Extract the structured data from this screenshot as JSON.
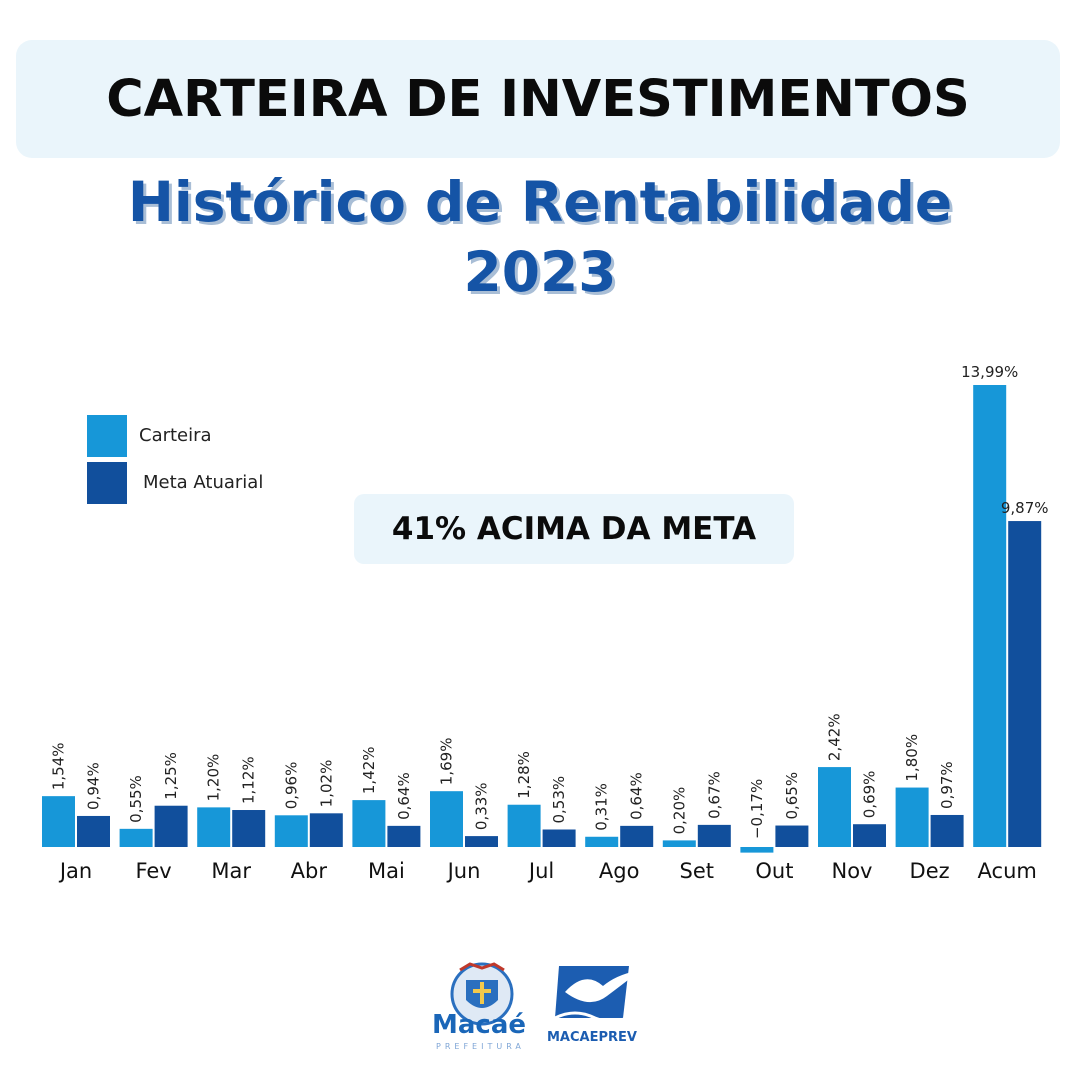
{
  "banner": {
    "title": "CARTEIRA DE INVESTIMENTOS"
  },
  "subtitle": {
    "line1": "Histórico de Rentabilidade",
    "line2": "2023"
  },
  "callout": {
    "text": "41% ACIMA DA META"
  },
  "colors": {
    "carteira": "#1797d8",
    "meta": "#114f9c",
    "accent_bg": "#eaf5fb",
    "title_blue": "#1554a6"
  },
  "chart_data": {
    "type": "bar",
    "categories": [
      "Jan",
      "Fev",
      "Mar",
      "Abr",
      "Mai",
      "Jun",
      "Jul",
      "Ago",
      "Set",
      "Out",
      "Nov",
      "Dez",
      "Acum"
    ],
    "series": [
      {
        "name": "Carteira",
        "values": [
          1.54,
          0.55,
          1.2,
          0.96,
          1.42,
          1.69,
          1.28,
          0.31,
          0.2,
          -0.17,
          2.42,
          1.8,
          13.99
        ],
        "labels": [
          "1,54%",
          "0,55%",
          "1,20%",
          "0,96%",
          "1,42%",
          "1,69%",
          "1,28%",
          "0,31%",
          "0,20%",
          "−0,17%",
          "2,42%",
          "1,80%",
          "13,99%"
        ]
      },
      {
        "name": "Meta Atuarial",
        "values": [
          0.94,
          1.25,
          1.12,
          1.02,
          0.64,
          0.33,
          0.53,
          0.64,
          0.67,
          0.65,
          0.69,
          0.97,
          9.87
        ],
        "labels": [
          "0,94%",
          "1,25%",
          "1,12%",
          "1,02%",
          "0,64%",
          "0,33%",
          "0,53%",
          "0,64%",
          "0,67%",
          "0,65%",
          "0,69%",
          "0,97%",
          "9,87%"
        ]
      }
    ],
    "legend": "left",
    "grid": false
  },
  "logos": {
    "macae": {
      "name": "Macaé",
      "sub": "PREFEITURA"
    },
    "macaeprev": {
      "name": "MACAEPREV"
    }
  }
}
